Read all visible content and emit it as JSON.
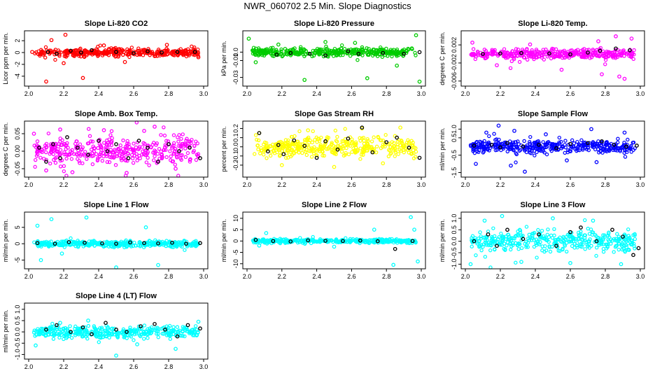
{
  "page": {
    "title": "NWR_060702  2.5 Min. Slope Diagnostics"
  },
  "chart_data": [
    {
      "type": "scatter",
      "title": "Slope Li-820 CO2",
      "ylabel": "Licor ppm per min.",
      "xlim": [
        2.0,
        3.0
      ],
      "ylim": [
        -5.2,
        3.2
      ],
      "xticks": [
        "2.0",
        "2.2",
        "2.4",
        "2.6",
        "2.8",
        "3.0"
      ],
      "yticks": [
        {
          "value": -4,
          "label": "-4"
        },
        {
          "value": -2,
          "label": "-2"
        },
        {
          "value": 0,
          "label": "0"
        },
        {
          "value": 2,
          "label": "2"
        }
      ],
      "color": "#ff0000",
      "spread": 0.55,
      "outlier": 4.6,
      "seed": 11,
      "series": [
        {
          "name": "",
          "color": "#ff0000",
          "x": [
            2.02,
            2.1,
            2.13,
            2.2,
            2.21,
            2.31,
            2.43,
            2.55,
            2.72,
            2.79,
            2.97
          ],
          "y": [
            0.1,
            -4.9,
            2.1,
            -1.8,
            3.0,
            -4.3,
            1.2,
            -1.6,
            -0.6,
            1.3,
            -0.8
          ]
        },
        {
          "name": "",
          "color": "#000000",
          "x": [
            2.11,
            2.16,
            2.24,
            2.3,
            2.36,
            2.5,
            2.6,
            2.68,
            2.76,
            2.85,
            2.95
          ],
          "y": [
            0.1,
            -0.2,
            0.3,
            0.0,
            0.4,
            0.1,
            -0.1,
            0.2,
            0.0,
            0.1,
            0.1
          ]
        }
      ]
    },
    {
      "type": "scatter",
      "title": "Slope Li-820 Pressure",
      "ylabel": "kPa per min.",
      "xlim": [
        2.0,
        3.0
      ],
      "ylim": [
        -0.037,
        0.022
      ],
      "xticks": [
        "2.0",
        "2.2",
        "2.4",
        "2.6",
        "2.8",
        "3.0"
      ],
      "yticks": [
        {
          "value": -0.03,
          "label": "-0.03"
        },
        {
          "value": -0.01,
          "label": "-0.01"
        },
        {
          "value": 0.0,
          "label": "0.0"
        }
      ],
      "color": "#00cc00",
      "spread": 0.004,
      "outlier": 0.035,
      "seed": 23,
      "series": [
        {
          "name": "",
          "color": "#00cc00",
          "x": [
            2.01,
            2.05,
            2.18,
            2.33,
            2.45,
            2.62,
            2.69,
            2.86,
            2.97,
            2.99
          ],
          "y": [
            0.016,
            -0.012,
            0.009,
            -0.033,
            0.012,
            0.011,
            -0.031,
            -0.016,
            0.02,
            -0.035
          ]
        },
        {
          "name": "",
          "color": "#000000",
          "x": [
            2.17,
            2.25,
            2.36,
            2.45,
            2.58,
            2.64,
            2.78,
            2.9,
            2.99
          ],
          "y": [
            -0.003,
            -0.001,
            -0.002,
            -0.004,
            0.001,
            -0.002,
            -0.001,
            -0.002,
            0.0
          ]
        }
      ]
    },
    {
      "type": "scatter",
      "title": "Slope Li-820 Temp.",
      "ylabel": "degrees C per min.",
      "xlim": [
        2.0,
        3.0
      ],
      "ylim": [
        -0.0065,
        0.0045
      ],
      "xticks": [
        "2.0",
        "2.2",
        "2.4",
        "2.6",
        "2.8",
        "3.0"
      ],
      "yticks": [
        {
          "value": -0.006,
          "label": "-0.006"
        },
        {
          "value": -0.002,
          "label": "-0.002"
        },
        {
          "value": 0.002,
          "label": "0.002"
        }
      ],
      "color": "#ff00ff",
      "spread": 0.0009,
      "outlier": 0.004,
      "seed": 37,
      "series": [
        {
          "name": "",
          "color": "#ff00ff",
          "x": [
            2.04,
            2.18,
            2.37,
            2.55,
            2.76,
            2.78,
            2.86,
            2.88,
            2.91,
            2.95
          ],
          "y": [
            0.0025,
            -0.0025,
            0.0021,
            -0.0035,
            0.0028,
            -0.0045,
            0.0039,
            -0.005,
            -0.0055,
            0.0034
          ]
        },
        {
          "name": "",
          "color": "#000000",
          "x": [
            2.1,
            2.2,
            2.32,
            2.48,
            2.6,
            2.7,
            2.77,
            2.86,
            2.94
          ],
          "y": [
            0.0,
            0.0001,
            0.0002,
            0.0001,
            -0.0001,
            0.0003,
            0.0007,
            0.0012,
            0.0008
          ]
        }
      ]
    },
    {
      "type": "scatter",
      "title": "Slope Amb. Box Temp.",
      "ylabel": "degrees C per min.",
      "xlim": [
        2.0,
        3.0
      ],
      "ylim": [
        -0.066,
        0.078
      ],
      "xticks": [
        "2.0",
        "2.2",
        "2.4",
        "2.6",
        "2.8",
        "3.0"
      ],
      "yticks": [
        {
          "value": -0.05,
          "label": "-0.05"
        },
        {
          "value": 0.0,
          "label": "0.00"
        },
        {
          "value": 0.05,
          "label": "0.05"
        }
      ],
      "color": "#ff00ff",
      "spread": 0.032,
      "outlier": 0.072,
      "seed": 41,
      "series": [
        {
          "name": "",
          "color": "#ff00ff",
          "x": [
            2.03,
            2.1,
            2.18,
            2.25,
            2.43,
            2.56,
            2.66,
            2.72,
            2.84
          ],
          "y": [
            0.05,
            -0.055,
            0.062,
            -0.06,
            0.06,
            -0.062,
            0.058,
            0.07,
            -0.05
          ]
        },
        {
          "name": "",
          "color": "#000000",
          "x": [
            2.06,
            2.1,
            2.14,
            2.18,
            2.22,
            2.28,
            2.34,
            2.4,
            2.45,
            2.5,
            2.57,
            2.63,
            2.68,
            2.74,
            2.8,
            2.86,
            2.92,
            2.98
          ],
          "y": [
            0.01,
            -0.03,
            0.02,
            -0.02,
            0.04,
            0.01,
            -0.01,
            0.03,
            0.0,
            0.02,
            -0.02,
            0.03,
            0.01,
            -0.03,
            0.02,
            0.0,
            0.01,
            -0.02
          ]
        }
      ]
    },
    {
      "type": "scatter",
      "title": "Slope Gas Stream RH",
      "ylabel": "percent per min.",
      "xlim": [
        2.0,
        3.0
      ],
      "ylim": [
        -0.3,
        0.25
      ],
      "xticks": [
        "2.0",
        "2.2",
        "2.4",
        "2.6",
        "2.8",
        "3.0"
      ],
      "yticks": [
        {
          "value": -0.2,
          "label": "-0.2"
        },
        {
          "value": -0.1,
          "label": "-0.1"
        },
        {
          "value": 0.0,
          "label": "0.0"
        },
        {
          "value": 0.1,
          "label": "0.1"
        },
        {
          "value": 0.2,
          "label": "0.2"
        }
      ],
      "color": "#ffff00",
      "spread": 0.09,
      "outlier": 0.22,
      "seed": 53,
      "series": [
        {
          "name": "",
          "color": "#ffff00",
          "x": [
            2.07,
            2.2,
            2.35,
            2.5,
            2.66,
            2.78,
            2.88
          ],
          "y": [
            0.15,
            -0.2,
            0.18,
            -0.22,
            0.2,
            -0.18,
            0.21
          ]
        },
        {
          "name": "",
          "color": "#000000",
          "x": [
            2.07,
            2.12,
            2.18,
            2.21,
            2.27,
            2.33,
            2.4,
            2.45,
            2.52,
            2.58,
            2.66,
            2.72,
            2.8,
            2.86,
            2.93,
            2.99
          ],
          "y": [
            0.15,
            -0.05,
            0.02,
            -0.08,
            0.07,
            0.01,
            -0.12,
            0.06,
            -0.03,
            0.09,
            0.21,
            -0.06,
            0.05,
            0.1,
            -0.01,
            -0.12
          ]
        }
      ]
    },
    {
      "type": "scatter",
      "title": "Slope Sample Flow",
      "ylabel": "ml/min per min.",
      "xlim": [
        2.0,
        3.0
      ],
      "ylim": [
        -1.6,
        1.3
      ],
      "xticks": [
        "2.0",
        "2.2",
        "2.4",
        "2.6",
        "2.8",
        "3.0"
      ],
      "yticks": [
        {
          "value": -1.5,
          "label": "-1.5"
        },
        {
          "value": -0.5,
          "label": "-0.5"
        },
        {
          "value": 0.5,
          "label": "0.5"
        },
        {
          "value": 1.0,
          "label": "1.0"
        }
      ],
      "color": "#0000ff",
      "spread": 0.28,
      "outlier": 1.2,
      "seed": 67,
      "series": [
        {
          "name": "",
          "color": "#0000ff",
          "x": [
            2.06,
            2.12,
            2.19,
            2.26,
            2.28,
            2.34,
            2.46,
            2.58,
            2.72,
            2.75,
            2.91
          ],
          "y": [
            -1.0,
            0.8,
            1.2,
            -1.1,
            0.9,
            -1.45,
            0.7,
            -0.8,
            1.0,
            -0.9,
            0.8
          ]
        },
        {
          "name": "",
          "color": "#000000",
          "x": [
            2.05,
            2.15,
            2.2,
            2.24,
            2.33,
            2.42,
            2.52,
            2.6,
            2.7,
            2.78,
            2.85,
            2.92,
            2.98
          ],
          "y": [
            0.05,
            0.1,
            -0.05,
            0.2,
            0.0,
            0.1,
            -0.1,
            0.15,
            0.2,
            0.3,
            0.1,
            0.0,
            0.05
          ]
        }
      ]
    },
    {
      "type": "scatter",
      "title": "Slope Line 1 Flow",
      "ylabel": "ml/min per min.",
      "xlim": [
        2.0,
        3.0
      ],
      "ylim": [
        -6.8,
        8.8
      ],
      "xticks": [
        "2.0",
        "2.2",
        "2.4",
        "2.6",
        "2.8",
        "3.0"
      ],
      "yticks": [
        {
          "value": -5,
          "label": "-5"
        },
        {
          "value": 0,
          "label": "0"
        },
        {
          "value": 5,
          "label": "5"
        }
      ],
      "color": "#00ffff",
      "spread": 0.8,
      "outlier": 8.5,
      "seed": 79,
      "series": [
        {
          "name": "",
          "color": "#00ffff",
          "x": [
            2.05,
            2.07,
            2.13,
            2.19,
            2.33,
            2.5,
            2.67,
            2.74
          ],
          "y": [
            5.5,
            -5.0,
            7.5,
            -3.0,
            8.0,
            -7.5,
            5.0,
            -6.5
          ]
        },
        {
          "name": "",
          "color": "#000000",
          "x": [
            2.05,
            2.15,
            2.23,
            2.32,
            2.42,
            2.5,
            2.58,
            2.66,
            2.74,
            2.82,
            2.9,
            2.98
          ],
          "y": [
            0.2,
            0.0,
            0.5,
            0.3,
            0.1,
            0.0,
            0.4,
            0.2,
            0.1,
            0.3,
            0.0,
            0.2
          ]
        }
      ]
    },
    {
      "type": "scatter",
      "title": "Slope Line 2 Flow",
      "ylabel": "ml/min per min.",
      "xlim": [
        2.0,
        3.0
      ],
      "ylim": [
        -11.0,
        11.5
      ],
      "xticks": [
        "2.0",
        "2.2",
        "2.4",
        "2.6",
        "2.8",
        "3.0"
      ],
      "yticks": [
        {
          "value": -10,
          "label": "-10"
        },
        {
          "value": -5,
          "label": "-5"
        },
        {
          "value": 0,
          "label": "0"
        },
        {
          "value": 5,
          "label": "5"
        },
        {
          "value": 10,
          "label": "10"
        }
      ],
      "color": "#00ffff",
      "spread": 0.7,
      "outlier": 10,
      "seed": 83,
      "series": [
        {
          "name": "",
          "color": "#00ffff",
          "x": [
            2.07,
            2.11,
            2.5,
            2.73,
            2.84,
            2.94,
            2.96,
            2.98
          ],
          "y": [
            -2.0,
            3.5,
            -2.5,
            5.0,
            -10.5,
            10.5,
            5.0,
            -9.0
          ]
        },
        {
          "name": "",
          "color": "#000000",
          "x": [
            2.05,
            2.15,
            2.25,
            2.35,
            2.45,
            2.55,
            2.65,
            2.75,
            2.85,
            2.95
          ],
          "y": [
            0.5,
            0.0,
            -0.2,
            0.3,
            0.1,
            0.0,
            0.2,
            -0.1,
            -3.5,
            0.0
          ]
        }
      ]
    },
    {
      "type": "scatter",
      "title": "Slope Line 3 Flow",
      "ylabel": "ml/min per min.",
      "xlim": [
        2.0,
        3.0
      ],
      "ylim": [
        -1.08,
        1.15
      ],
      "xticks": [
        "2.0",
        "2.2",
        "2.4",
        "2.6",
        "2.8",
        "3.0"
      ],
      "yticks": [
        {
          "value": -1.0,
          "label": "-1.0"
        },
        {
          "value": -0.5,
          "label": "-0.5"
        },
        {
          "value": 0.0,
          "label": "0.0"
        },
        {
          "value": 0.5,
          "label": "0.5"
        },
        {
          "value": 1.0,
          "label": "1.0"
        }
      ],
      "color": "#00ffff",
      "spread": 0.38,
      "outlier": 1.0,
      "seed": 97,
      "series": [
        {
          "name": "",
          "color": "#00ffff",
          "x": [
            2.03,
            2.11,
            2.21,
            2.32,
            2.5,
            2.6,
            2.73,
            2.89
          ],
          "y": [
            -1.0,
            0.9,
            1.1,
            -0.9,
            1.0,
            -0.95,
            0.9,
            -1.0
          ]
        },
        {
          "name": "",
          "color": "#000000",
          "x": [
            2.05,
            2.13,
            2.18,
            2.24,
            2.33,
            2.42,
            2.52,
            2.6,
            2.66,
            2.75,
            2.84,
            2.9,
            2.96,
            2.99
          ],
          "y": [
            0.0,
            0.3,
            -0.2,
            0.5,
            0.1,
            0.3,
            -0.2,
            0.4,
            0.6,
            0.0,
            0.5,
            0.2,
            -0.6,
            -0.3
          ]
        }
      ]
    },
    {
      "type": "scatter",
      "title": "Slope Line 4 (LT) Flow",
      "ylabel": "ml/min per min.",
      "xlim": [
        2.0,
        3.0
      ],
      "ylim": [
        -1.08,
        1.15
      ],
      "xticks": [
        "2.0",
        "2.2",
        "2.4",
        "2.6",
        "2.8",
        "3.0"
      ],
      "yticks": [
        {
          "value": -1.0,
          "label": "-1.0"
        },
        {
          "value": -0.5,
          "label": "-0.5"
        },
        {
          "value": 0.0,
          "label": "0.0"
        },
        {
          "value": 0.5,
          "label": "0.5"
        },
        {
          "value": 1.0,
          "label": "1.0"
        }
      ],
      "color": "#00ffff",
      "spread": 0.22,
      "outlier": 0.9,
      "seed": 101,
      "series": [
        {
          "name": "",
          "color": "#00ffff",
          "x": [
            2.04,
            2.18,
            2.34,
            2.5,
            2.62,
            2.84,
            2.97
          ],
          "y": [
            -0.6,
            0.4,
            0.5,
            -1.05,
            -0.55,
            -0.75,
            0.45
          ]
        },
        {
          "name": "",
          "color": "#000000",
          "x": [
            2.1,
            2.16,
            2.24,
            2.31,
            2.36,
            2.44,
            2.5,
            2.56,
            2.64,
            2.72,
            2.78,
            2.85,
            2.91,
            2.98
          ],
          "y": [
            0.1,
            0.3,
            0.0,
            0.2,
            -0.1,
            0.4,
            0.1,
            0.0,
            0.25,
            0.35,
            0.1,
            -0.2,
            0.3,
            0.15
          ]
        }
      ]
    }
  ]
}
